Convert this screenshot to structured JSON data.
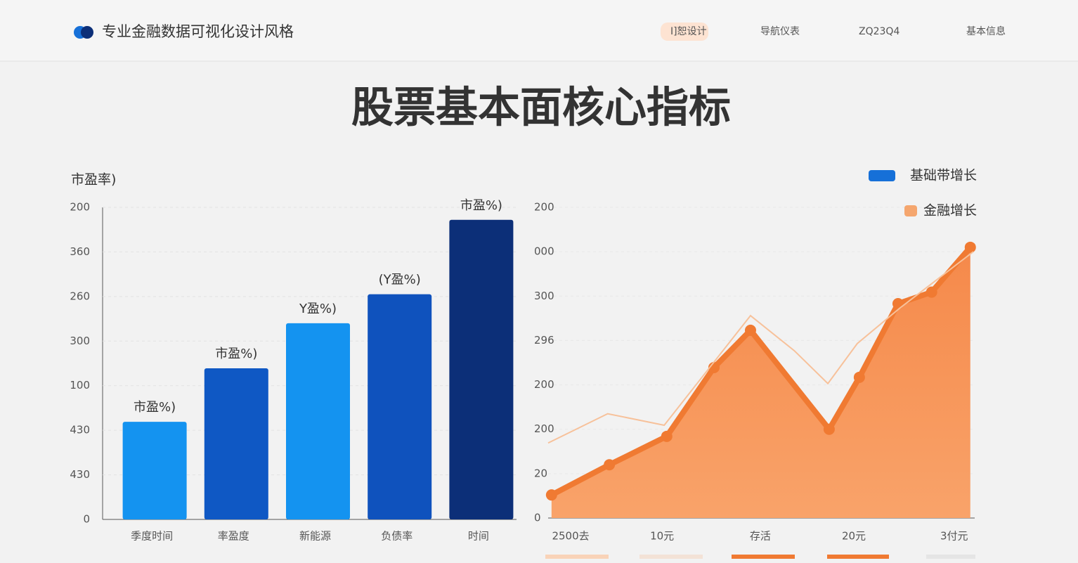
{
  "header": {
    "title": "专业金融数据可视化设计风格",
    "nav": [
      "I]恕设计",
      "导航仪表",
      "ZQ23Q4",
      "基本信息"
    ]
  },
  "title": "股票基本面核心指标",
  "chart_data": [
    {
      "type": "bar",
      "ylabel": "市盈率)",
      "categories": [
        "季度时间",
        "率盈度",
        "新能源",
        "负债率",
        "时间"
      ],
      "values": [
        2.19,
        3.39,
        4.4,
        5.05,
        6.72
      ],
      "value_labels": [
        "市盈%)",
        "市盈%)",
        "Y盈%)",
        "(Y盈%)",
        "市盈%)"
      ],
      "colors": [
        "#1493f0",
        "#0f58c4",
        "#1493f0",
        "#0f52bd",
        "#0c2f78"
      ],
      "ylim": [
        0,
        7
      ],
      "yticks": [
        {
          "value": 0,
          "label": "0"
        },
        {
          "value": 1,
          "label": "430"
        },
        {
          "value": 2,
          "label": "430"
        },
        {
          "value": 3,
          "label": "100"
        },
        {
          "value": 4,
          "label": "300"
        },
        {
          "value": 5,
          "label": "260"
        },
        {
          "value": 6,
          "label": "360"
        },
        {
          "value": 7,
          "label": "200"
        }
      ],
      "grid": true
    },
    {
      "type": "line",
      "legend": [
        {
          "name": "基础带增长",
          "color": "#1670d8"
        },
        {
          "name": "金融增长",
          "color": "#f5a66e"
        }
      ],
      "series": [
        {
          "area": true,
          "color": "#f07a32",
          "x": [
            0.08,
            1.44,
            2.79,
            3.9,
            4.76,
            6.61,
            7.32,
            8.23,
            9.02,
            9.93
          ],
          "values": [
            0.52,
            1.2,
            1.84,
            3.39,
            4.23,
            2.0,
            3.17,
            4.83,
            5.09,
            6.1
          ]
        },
        {
          "area": false,
          "color": "#f7c19a",
          "x": [
            0,
            1.4,
            2.73,
            4.76,
            5.79,
            6.58,
            7.27,
            8.26,
            10
          ],
          "values": [
            1.69,
            2.35,
            2.09,
            4.56,
            3.77,
            3.03,
            3.93,
            4.72,
            6.0
          ]
        }
      ],
      "xlim": [
        0,
        10
      ],
      "xticks": [
        {
          "value": 0.53,
          "label": "2500去"
        },
        {
          "value": 2.68,
          "label": "10元"
        },
        {
          "value": 4.99,
          "label": "存活"
        },
        {
          "value": 7.19,
          "label": "20元"
        },
        {
          "value": 9.55,
          "label": "3付元"
        }
      ],
      "ylim": [
        0,
        7
      ],
      "yticks": [
        {
          "value": 0,
          "label": "0"
        },
        {
          "value": 1,
          "label": "20"
        },
        {
          "value": 2,
          "label": "200"
        },
        {
          "value": 3,
          "label": "200"
        },
        {
          "value": 4,
          "label": "296"
        },
        {
          "value": 5,
          "label": "300"
        },
        {
          "value": 6,
          "label": "000"
        },
        {
          "value": 7,
          "label": "200"
        }
      ]
    }
  ]
}
